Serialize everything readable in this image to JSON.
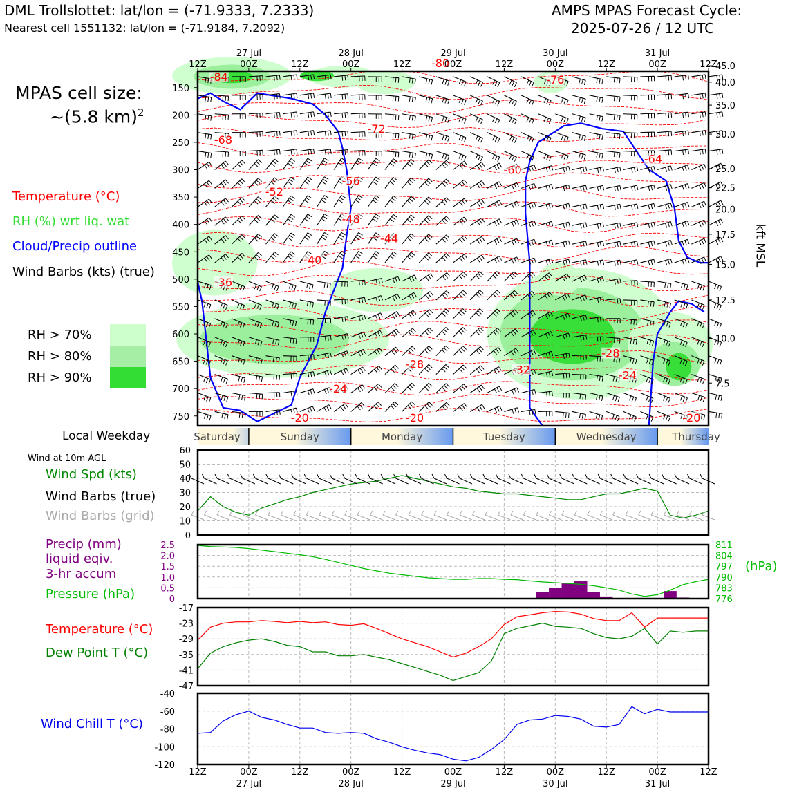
{
  "header": {
    "station_line": "DML Trollslottet: lat/lon = (-71.9333, 7.2333)",
    "cell_line": "Nearest cell 1551132: lat/lon = (-71.9184, 7.2092)",
    "cycle_line1": "AMPS MPAS Forecast Cycle:",
    "cycle_line2": "2025-07-26 / 12 UTC"
  },
  "legend": {
    "cell_size_line1": "MPAS cell size:",
    "cell_size_line2": "~(5.8 km)",
    "cell_size_sup": "2",
    "temperature": "Temperature (°C)",
    "rh": "RH (%) wrt liq. wat",
    "cloud": "Cloud/Precip outline",
    "barbs": "Wind Barbs (kts) (true)",
    "rh70": "RH > 70%",
    "rh80": "RH > 80%",
    "rh90": "RH > 90%",
    "weekday_title": "Local Weekday",
    "wind10m": "Wind at 10m AGL",
    "wind_spd": "Wind Spd (kts)",
    "barbs_true": "Wind Barbs (true)",
    "barbs_grid": "Wind Barbs (grid)",
    "precip_l1": "Precip (mm)",
    "precip_l2": "liquid eqiv.",
    "precip_l3": "3-hr accum",
    "pressure": "Pressure (hPa)",
    "hpa": "(hPa)",
    "temp2": "Temperature (°C)",
    "dew": "Dew Point T (°C)",
    "windchill": "Wind Chill T (°C)",
    "kft": "kft MSL"
  },
  "colors": {
    "temperature": "#ff0000",
    "rh_label": "#33cc33",
    "cloud": "#0000ff",
    "rh70": "#ccffcc",
    "rh80": "#99ee99",
    "rh90": "#33dd33",
    "precip": "#800080",
    "pressure": "#00bb00",
    "dewpoint": "#008000",
    "windchill": "#0000ee",
    "grid_barb": "#aaaaaa"
  },
  "chart_data": [
    {
      "type": "heatmap",
      "panel": "time-height cross section",
      "x_ticks": [
        "12Z",
        "00Z",
        "12Z",
        "00Z",
        "12Z",
        "00Z",
        "12Z",
        "00Z",
        "12Z",
        "00Z",
        "12Z"
      ],
      "x_dates": [
        "27 Jul",
        "28 Jul",
        "29 Jul",
        "30 Jul",
        "31 Jul"
      ],
      "x_range_hours": [
        0,
        120
      ],
      "y_left_label_values": [
        150,
        200,
        250,
        300,
        350,
        400,
        450,
        500,
        550,
        600,
        650,
        700,
        750
      ],
      "y_right_label_values": [
        "45.0",
        "40.0",
        "35.0",
        "30.0",
        "25.0",
        "22.5",
        "20.0",
        "17.5",
        "15.0",
        "12.5",
        "10.0",
        "7.5"
      ],
      "temperature_contour_labels": [
        {
          "text": "-84",
          "t": 5,
          "p": 135
        },
        {
          "text": "-80",
          "t": 57,
          "p": 110
        },
        {
          "text": "-76",
          "t": 84,
          "p": 140
        },
        {
          "text": "-72",
          "t": 42,
          "p": 230
        },
        {
          "text": "-68",
          "t": 6,
          "p": 250
        },
        {
          "text": "-64",
          "t": 107,
          "p": 285
        },
        {
          "text": "-60",
          "t": 74,
          "p": 305
        },
        {
          "text": "-56",
          "t": 36,
          "p": 325
        },
        {
          "text": "-52",
          "t": 18,
          "p": 345
        },
        {
          "text": "-48",
          "t": 36,
          "p": 395
        },
        {
          "text": "-44",
          "t": 45,
          "p": 430
        },
        {
          "text": "-40",
          "t": 27,
          "p": 470
        },
        {
          "text": "-36",
          "t": 6,
          "p": 510
        },
        {
          "text": "-32",
          "t": 76,
          "p": 670
        },
        {
          "text": "-28",
          "t": 51,
          "p": 660
        },
        {
          "text": "-28",
          "t": 97,
          "p": 640
        },
        {
          "text": "-24",
          "t": 33,
          "p": 705
        },
        {
          "text": "-24",
          "t": 101,
          "p": 680
        },
        {
          "text": "-20",
          "t": 24,
          "p": 758
        },
        {
          "text": "-20",
          "t": 51,
          "p": 758
        },
        {
          "text": "-20",
          "t": 116,
          "p": 758
        }
      ]
    },
    {
      "type": "line",
      "panel": "wind at 10m",
      "x": [
        0,
        3,
        6,
        9,
        12,
        15,
        18,
        21,
        24,
        27,
        30,
        33,
        36,
        39,
        42,
        45,
        48,
        51,
        54,
        57,
        60,
        63,
        66,
        69,
        72,
        75,
        78,
        81,
        84,
        87,
        90,
        93,
        96,
        99,
        102,
        105,
        108,
        111,
        114,
        117,
        120
      ],
      "series": [
        {
          "name": "Wind Spd (kts)",
          "values": [
            17,
            27,
            20,
            16,
            14,
            19,
            22,
            25,
            27,
            30,
            32,
            34,
            36,
            37,
            38,
            40,
            42,
            40,
            38,
            36,
            34,
            33,
            31,
            30,
            29,
            29,
            28,
            27,
            26,
            25,
            25,
            27,
            29,
            29,
            31,
            33,
            31,
            14,
            12,
            14,
            17
          ]
        }
      ],
      "ylim": [
        0,
        60
      ],
      "yticks": [
        0,
        10,
        20,
        30,
        40,
        50,
        60
      ]
    },
    {
      "type": "bar",
      "panel": "precip and pressure",
      "precip_bars": [
        {
          "t": 81,
          "value": 0.3
        },
        {
          "t": 84,
          "value": 0.5
        },
        {
          "t": 87,
          "value": 0.7
        },
        {
          "t": 90,
          "value": 0.8
        },
        {
          "t": 93,
          "value": 0.3
        },
        {
          "t": 96,
          "value": 0.1
        },
        {
          "t": 111,
          "value": 0.35
        },
        {
          "t": 114,
          "value": 0.05
        }
      ],
      "pressure_x": [
        0,
        3,
        6,
        9,
        12,
        15,
        18,
        21,
        24,
        27,
        30,
        33,
        36,
        39,
        42,
        45,
        48,
        51,
        54,
        57,
        60,
        63,
        66,
        69,
        72,
        75,
        78,
        81,
        84,
        87,
        90,
        93,
        96,
        99,
        102,
        105,
        108,
        111,
        114,
        117,
        120
      ],
      "pressure_values": [
        810.5,
        809.8,
        809.5,
        809.2,
        808.5,
        807.5,
        806.5,
        805.5,
        804.5,
        803.2,
        801.5,
        799.5,
        797.5,
        795.5,
        794,
        792.5,
        791.5,
        790.5,
        789.5,
        789,
        788.5,
        788.5,
        789,
        789,
        788.5,
        788.3,
        787.5,
        786.8,
        786.3,
        785.8,
        785.3,
        784.3,
        783,
        781.5,
        779,
        777.5,
        778.5,
        781.5,
        785,
        787,
        788.5
      ],
      "left_yticks": [
        "0",
        "0.5",
        "1.0",
        "1.5",
        "2.0",
        "2.5"
      ],
      "right_yticks": [
        "776",
        "783",
        "790",
        "797",
        "804",
        "811"
      ]
    },
    {
      "type": "line",
      "panel": "temperature and dew point",
      "x": [
        0,
        3,
        6,
        9,
        12,
        15,
        18,
        21,
        24,
        27,
        30,
        33,
        36,
        39,
        42,
        45,
        48,
        51,
        54,
        57,
        60,
        63,
        66,
        69,
        72,
        75,
        78,
        81,
        84,
        87,
        90,
        93,
        96,
        99,
        102,
        105,
        108,
        111,
        114,
        117,
        120
      ],
      "series": [
        {
          "name": "Temperature (°C)",
          "values": [
            -29.5,
            -24.5,
            -23,
            -22.5,
            -22.5,
            -22,
            -22.3,
            -22.8,
            -22.3,
            -22.8,
            -22.5,
            -23.5,
            -23.8,
            -23.2,
            -25,
            -27,
            -29,
            -30.5,
            -32,
            -34,
            -36,
            -34.5,
            -32,
            -29,
            -23.5,
            -20.5,
            -19.8,
            -19,
            -18.5,
            -18.7,
            -19.5,
            -21.2,
            -22,
            -22,
            -19,
            -24.5,
            -21,
            -21,
            -21,
            -21,
            -21
          ],
          "values_note_shown": true
        },
        {
          "name": "Dew Point T (°C)",
          "values": [
            -40.5,
            -34.5,
            -32,
            -30.5,
            -29.5,
            -29,
            -30,
            -31.5,
            -32,
            -34,
            -34,
            -35.5,
            -35.5,
            -35,
            -36,
            -37,
            -38.5,
            -40,
            -41.5,
            -43,
            -45,
            -43.5,
            -42,
            -37.5,
            -27,
            -25,
            -24,
            -23,
            -24.2,
            -24.5,
            -25,
            -27,
            -28.5,
            -29,
            -28,
            -25,
            -31,
            -26,
            -26.5,
            -26,
            -26
          ]
        }
      ],
      "yticks": [
        "-47",
        "-41",
        "-35",
        "-29",
        "-23",
        "-17"
      ]
    },
    {
      "type": "line",
      "panel": "wind chill",
      "x": [
        0,
        3,
        6,
        9,
        12,
        15,
        18,
        21,
        24,
        27,
        30,
        33,
        36,
        39,
        42,
        45,
        48,
        51,
        54,
        57,
        60,
        63,
        66,
        69,
        72,
        75,
        78,
        81,
        84,
        87,
        90,
        93,
        96,
        99,
        102,
        105,
        108,
        111,
        114,
        117,
        120
      ],
      "series": [
        {
          "name": "Wind Chill T (°C)",
          "values": [
            -85,
            -84,
            -71,
            -64,
            -60,
            -67,
            -70,
            -75,
            -79,
            -79,
            -84,
            -85,
            -84,
            -85,
            -91,
            -95,
            -100,
            -104,
            -107,
            -109,
            -114,
            -116,
            -112,
            -103,
            -92,
            -75,
            -70,
            -69,
            -65,
            -66,
            -69,
            -77,
            -78,
            -75,
            -55,
            -63,
            -58,
            -61,
            -61,
            -61,
            -61
          ]
        }
      ],
      "yticks": [
        "-120",
        "-100",
        "-80",
        "-60",
        "-40"
      ]
    }
  ],
  "weekdays": [
    "Saturday",
    "Sunday",
    "Monday",
    "Tuesday",
    "Wednesday",
    "Thursday"
  ]
}
